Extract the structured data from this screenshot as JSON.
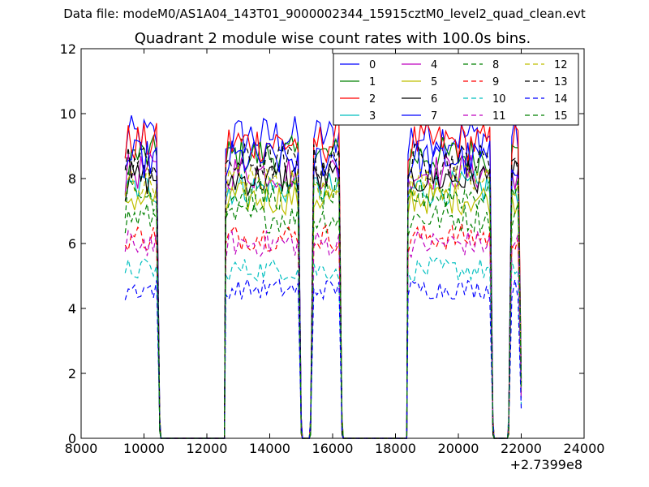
{
  "header": {
    "supertitle": "Data file: modeM0/AS1A04_143T01_9000002344_15915cztM0_level2_quad_clean.evt",
    "title": "Quadrant 2 module wise count rates with 100.0s bins."
  },
  "chart_data": {
    "type": "line",
    "title": "Quadrant 2 module wise count rates with 100.0s bins.",
    "xlabel": "",
    "ylabel": "",
    "x_offset_label": "+2.7399e8",
    "xlim": [
      8000,
      24000
    ],
    "ylim": [
      0,
      12
    ],
    "xticks": [
      8000,
      10000,
      12000,
      14000,
      16000,
      18000,
      20000,
      22000,
      24000
    ],
    "yticks": [
      0,
      2,
      4,
      6,
      8,
      10,
      12
    ],
    "grid": false,
    "legend": {
      "position": "top-right",
      "columns": 4
    },
    "x": [
      9400,
      9500,
      9600,
      9700,
      9800,
      9900,
      10000,
      10100,
      10200,
      10300,
      10400,
      10500,
      12600,
      12700,
      12800,
      12900,
      13000,
      13100,
      13200,
      13300,
      13400,
      13500,
      13600,
      13700,
      13800,
      13900,
      14000,
      14100,
      14200,
      14300,
      14400,
      14500,
      14600,
      14700,
      14800,
      14900,
      15000,
      15300,
      15400,
      15500,
      15600,
      15700,
      15800,
      15900,
      16000,
      16100,
      16200,
      16300,
      18400,
      18500,
      18600,
      18700,
      18800,
      18900,
      19000,
      19100,
      19200,
      19300,
      19400,
      19500,
      19600,
      19700,
      19800,
      19900,
      20000,
      20100,
      20200,
      20300,
      20400,
      20500,
      20600,
      20700,
      20800,
      20900,
      21000,
      21100,
      21600,
      21700,
      21800,
      21900,
      22000
    ],
    "segments": [
      [
        9400,
        10500
      ],
      [
        12600,
        15000
      ],
      [
        15300,
        16300
      ],
      [
        18400,
        21100
      ],
      [
        21600,
        22000
      ]
    ],
    "zero_spans": [
      [
        10500,
        12600
      ],
      [
        15000,
        15300
      ],
      [
        16300,
        18400
      ],
      [
        21100,
        21600
      ]
    ],
    "series": [
      {
        "name": "0",
        "color": "#0000ff",
        "dash": "solid",
        "level": 9.3
      },
      {
        "name": "1",
        "color": "#008000",
        "dash": "solid",
        "level": 8.7
      },
      {
        "name": "2",
        "color": "#ff0000",
        "dash": "solid",
        "level": 9.1
      },
      {
        "name": "3",
        "color": "#00bfbf",
        "dash": "solid",
        "level": 7.7
      },
      {
        "name": "4",
        "color": "#bf00bf",
        "dash": "solid",
        "level": 8.2
      },
      {
        "name": "5",
        "color": "#bfbf00",
        "dash": "solid",
        "level": 7.4
      },
      {
        "name": "6",
        "color": "#000000",
        "dash": "solid",
        "level": 8.0
      },
      {
        "name": "7",
        "color": "#0000ff",
        "dash": "solid",
        "level": 8.6
      },
      {
        "name": "8",
        "color": "#008000",
        "dash": "dashed",
        "level": 6.8
      },
      {
        "name": "9",
        "color": "#ff0000",
        "dash": "dashed",
        "level": 6.2
      },
      {
        "name": "10",
        "color": "#00bfbf",
        "dash": "dashed",
        "level": 5.2
      },
      {
        "name": "11",
        "color": "#bf00bf",
        "dash": "dashed",
        "level": 6.0
      },
      {
        "name": "12",
        "color": "#bfbf00",
        "dash": "dashed",
        "level": 7.9
      },
      {
        "name": "13",
        "color": "#000000",
        "dash": "dashed",
        "level": 8.5
      },
      {
        "name": "14",
        "color": "#0000ff",
        "dash": "dashed",
        "level": 4.6
      },
      {
        "name": "15",
        "color": "#008000",
        "dash": "dashed",
        "level": 7.5
      }
    ]
  }
}
